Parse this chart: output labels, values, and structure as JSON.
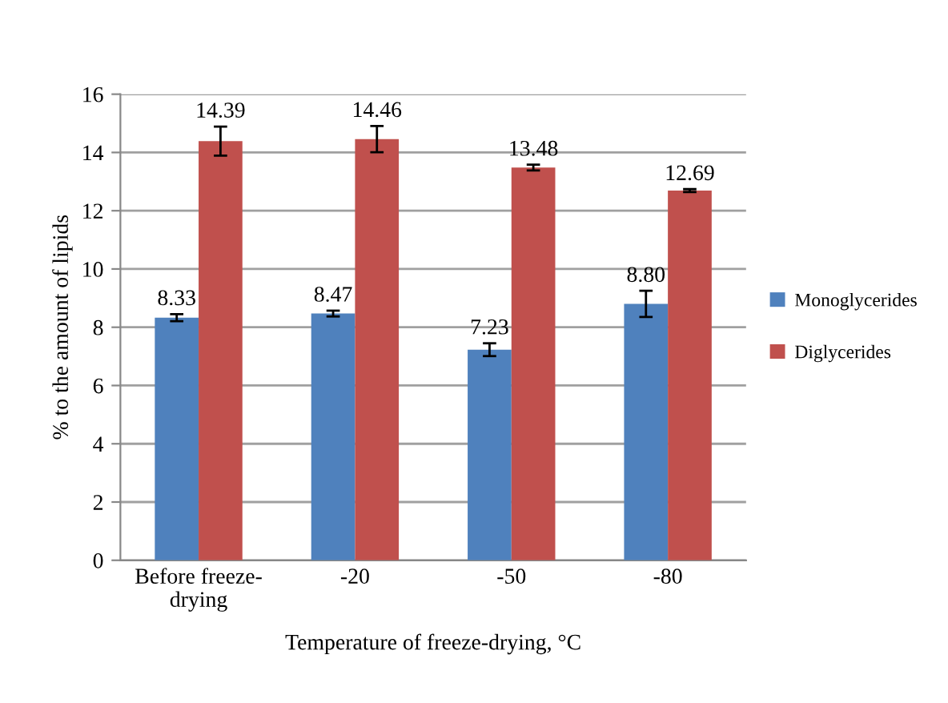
{
  "chart_data": {
    "type": "bar",
    "xlabel": "Temperature of freeze-drying, °C",
    "ylabel": "% to the amount of lipids",
    "categories": [
      "Before freeze-drying",
      "-20",
      "-50",
      "-80"
    ],
    "series": [
      {
        "name": "Monoglycerides",
        "color": "#4f81bd",
        "values": [
          8.33,
          8.47,
          7.23,
          8.8
        ],
        "value_labels": [
          "8.33",
          "8.47",
          "7.23",
          "8.80"
        ],
        "errors": [
          0.12,
          0.1,
          0.22,
          0.45
        ]
      },
      {
        "name": "Diglycerides",
        "color": "#c0504d",
        "values": [
          14.39,
          14.46,
          13.48,
          12.69
        ],
        "value_labels": [
          "14.39",
          "14.46",
          "13.48",
          "12.69"
        ],
        "errors": [
          0.5,
          0.45,
          0.1,
          0.05
        ]
      }
    ],
    "ylim": [
      0,
      16
    ],
    "yticks": [
      0,
      2,
      4,
      6,
      8,
      10,
      12,
      14,
      16
    ],
    "grid": "y",
    "legend": "right"
  }
}
